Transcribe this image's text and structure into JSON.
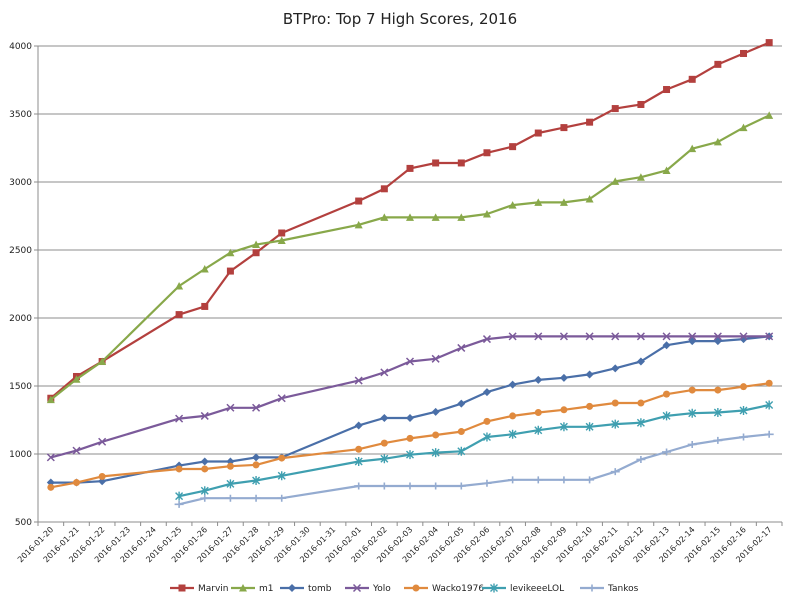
{
  "chart_data": {
    "type": "line",
    "title": "BTPro: Top 7 High Scores, 2016",
    "xlabel": "",
    "ylabel": "",
    "ylim": [
      500,
      4000
    ],
    "yticks": [
      500,
      1000,
      1500,
      2000,
      2500,
      3000,
      3500,
      4000
    ],
    "grid": true,
    "legend_position": "bottom",
    "categories": [
      "2016-01-20",
      "2016-01-21",
      "2016-01-22",
      "2016-01-23",
      "2016-01-24",
      "2016-01-25",
      "2016-01-26",
      "2016-01-27",
      "2016-01-28",
      "2016-01-29",
      "2016-01-30",
      "2016-01-31",
      "2016-02-01",
      "2016-02-02",
      "2016-02-03",
      "2016-02-04",
      "2016-02-05",
      "2016-02-06",
      "2016-02-07",
      "2016-02-08",
      "2016-02-09",
      "2016-02-10",
      "2016-02-11",
      "2016-02-12",
      "2016-02-13",
      "2016-02-14",
      "2016-02-15",
      "2016-02-16",
      "2016-02-17"
    ],
    "series": [
      {
        "name": "Marvin",
        "color": "#b3403e",
        "marker": "square",
        "values": [
          1410,
          1570,
          1680,
          null,
          null,
          2025,
          2085,
          2345,
          2480,
          2625,
          null,
          null,
          2860,
          2950,
          3100,
          3140,
          3140,
          3215,
          3260,
          3360,
          3400,
          3440,
          3540,
          3570,
          3680,
          3755,
          3865,
          3945,
          4025
        ]
      },
      {
        "name": "m1",
        "color": "#88a84a",
        "marker": "triangle",
        "values": [
          1400,
          1550,
          1680,
          null,
          null,
          2235,
          2360,
          2480,
          2540,
          2570,
          null,
          null,
          2685,
          2740,
          2740,
          2740,
          2740,
          2765,
          2830,
          2850,
          2850,
          2875,
          3005,
          3035,
          3085,
          3245,
          3295,
          3400,
          3490
        ]
      },
      {
        "name": "tomb",
        "color": "#4a6fa8",
        "marker": "diamond",
        "values": [
          790,
          790,
          800,
          null,
          null,
          915,
          945,
          945,
          975,
          975,
          null,
          null,
          1210,
          1265,
          1265,
          1310,
          1370,
          1455,
          1510,
          1545,
          1560,
          1585,
          1630,
          1680,
          1800,
          1830,
          1830,
          1845,
          1865
        ]
      },
      {
        "name": "Yolo",
        "color": "#7b5a9a",
        "marker": "x",
        "values": [
          975,
          1025,
          1090,
          null,
          null,
          1260,
          1280,
          1340,
          1340,
          1410,
          null,
          null,
          1540,
          1600,
          1680,
          1700,
          1780,
          1845,
          1865,
          1865,
          1865,
          1865,
          1865,
          1865,
          1865,
          1865,
          1865,
          1865,
          1865
        ]
      },
      {
        "name": "Wacko1976",
        "color": "#e08a3e",
        "marker": "circle",
        "values": [
          755,
          790,
          835,
          null,
          null,
          890,
          890,
          910,
          920,
          970,
          null,
          null,
          1035,
          1080,
          1115,
          1140,
          1165,
          1240,
          1280,
          1305,
          1325,
          1350,
          1375,
          1375,
          1440,
          1470,
          1470,
          1495,
          1520
        ]
      },
      {
        "name": "levikeeeLOL",
        "color": "#3f9fb0",
        "marker": "star",
        "values": [
          null,
          null,
          null,
          null,
          null,
          690,
          730,
          780,
          805,
          840,
          null,
          null,
          945,
          965,
          995,
          1010,
          1020,
          1125,
          1145,
          1175,
          1200,
          1200,
          1220,
          1230,
          1280,
          1300,
          1305,
          1320,
          1360
        ]
      },
      {
        "name": "Tankos",
        "color": "#94abd0",
        "marker": "plus",
        "values": [
          null,
          null,
          null,
          null,
          null,
          630,
          675,
          675,
          675,
          675,
          null,
          null,
          765,
          765,
          765,
          765,
          765,
          785,
          810,
          810,
          810,
          810,
          870,
          960,
          1015,
          1070,
          1100,
          1125,
          1145
        ]
      }
    ]
  }
}
